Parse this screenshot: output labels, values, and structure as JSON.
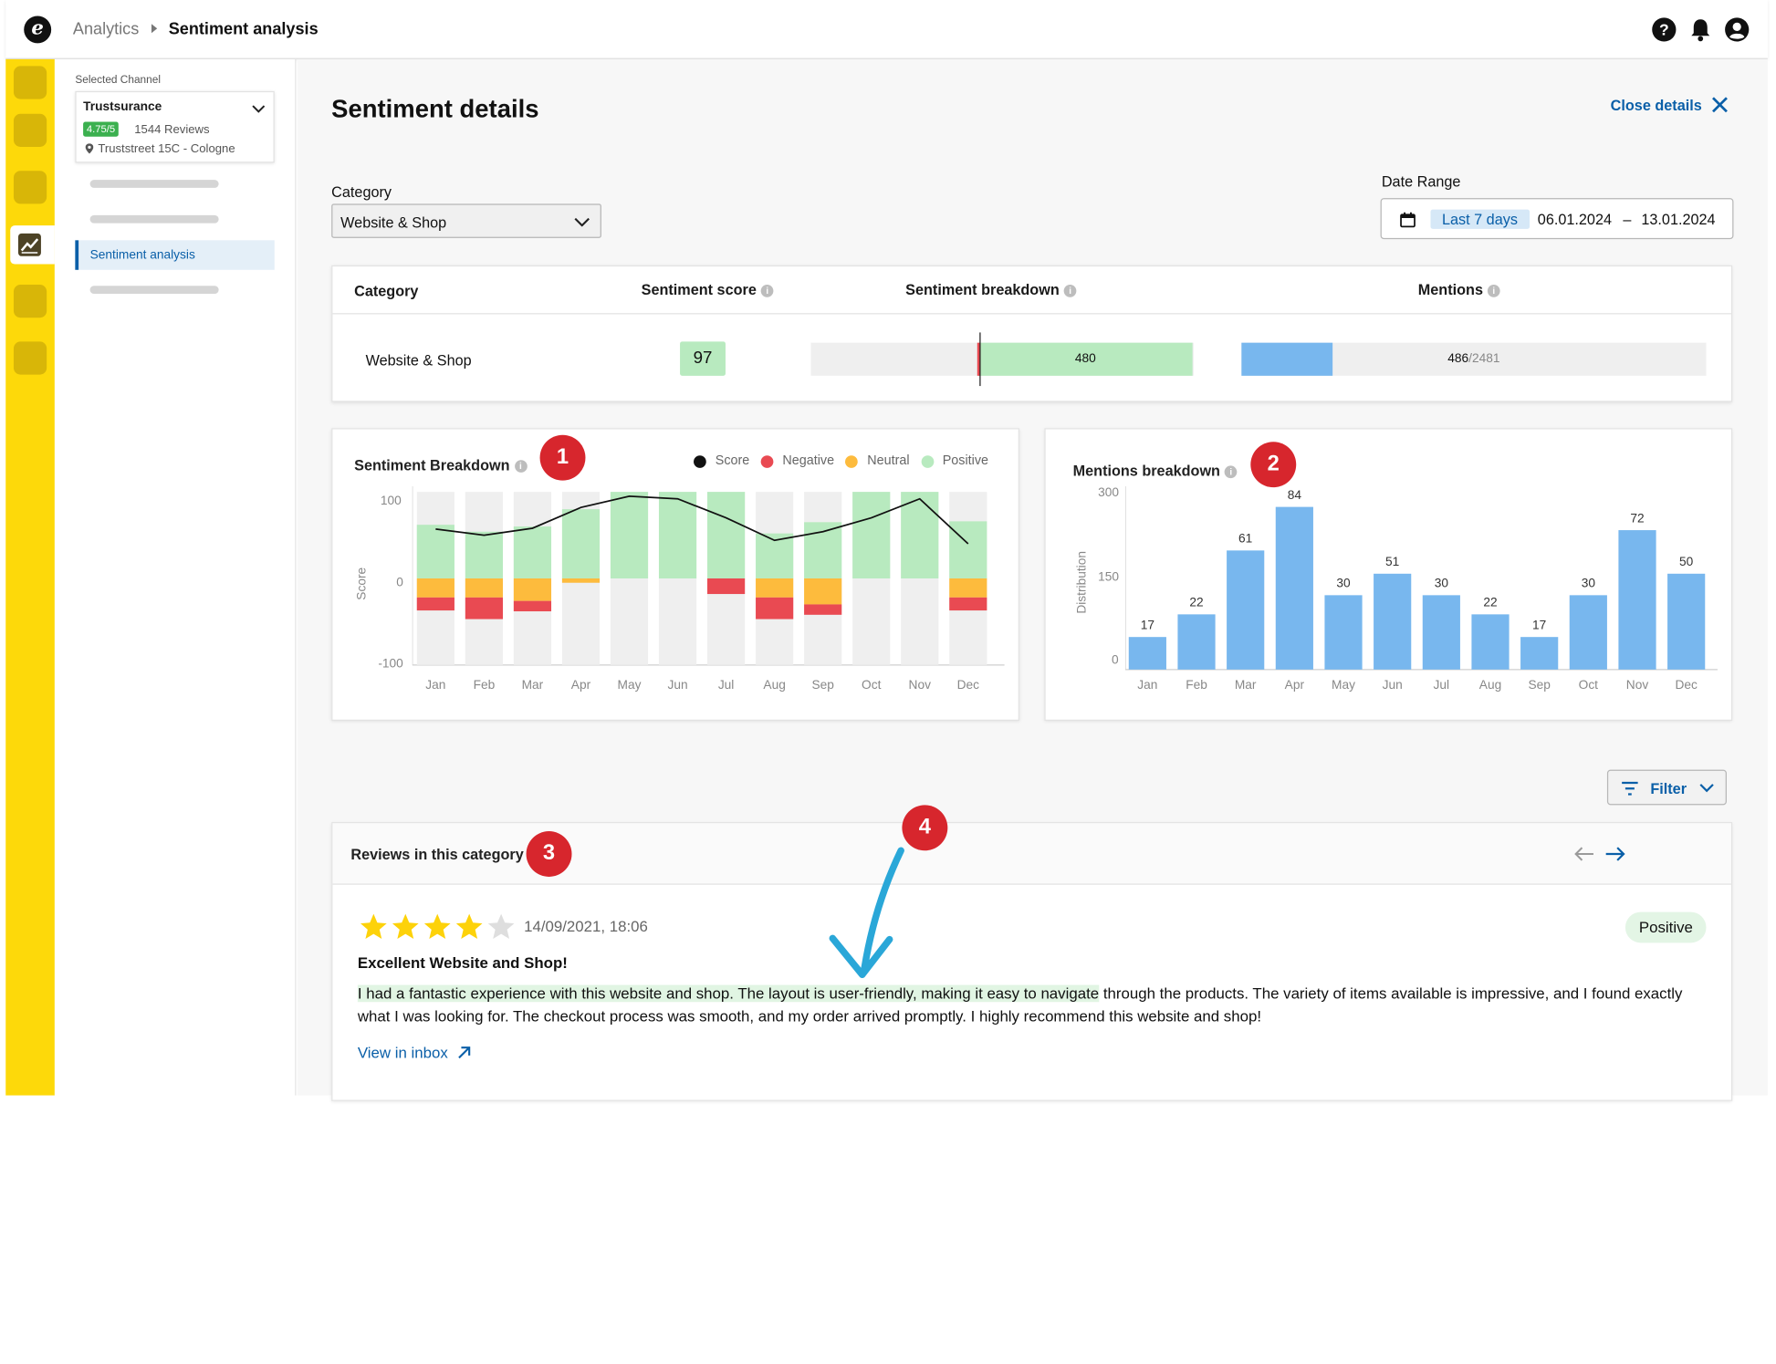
{
  "header": {
    "logo_letter": "e",
    "breadcrumb": [
      "Analytics",
      "Sentiment analysis"
    ],
    "icons": [
      "help-icon",
      "bell-icon",
      "user-avatar-icon"
    ]
  },
  "sidebar": {
    "selected_channel_label": "Selected Channel",
    "channel": {
      "name": "Trustsurance",
      "rating": "4.75/5",
      "reviews": "1544 Reviews",
      "address": "Truststreet 15C - Cologne"
    },
    "active_item": "Sentiment analysis"
  },
  "page": {
    "title": "Sentiment details",
    "close_label": "Close details",
    "category_label": "Category",
    "category_value": "Website & Shop",
    "date_range_label": "Date Range",
    "date_preset": "Last 7 days",
    "date_from": "06.01.2024",
    "date_sep": "–",
    "date_to": "13.01.2024"
  },
  "summary_table": {
    "headers": [
      "Category",
      "Sentiment score",
      "Sentiment breakdown",
      "Mentions"
    ],
    "row": {
      "category": "Website & Shop",
      "score": "97",
      "positive_count": "480",
      "mentions": "486",
      "mentions_total": "/2481",
      "mentions_fraction": 0.196
    }
  },
  "sentiment_chart": {
    "title": "Sentiment Breakdown",
    "badge": "1",
    "legend": [
      "Score",
      "Negative",
      "Neutral",
      "Positive"
    ],
    "y_label": "Score",
    "y_ticks": [
      "100",
      "0",
      "-100"
    ]
  },
  "mentions_chart": {
    "title": "Mentions breakdown",
    "badge": "2",
    "y_label": "Distribution",
    "y_ticks": [
      "300",
      "150",
      "0"
    ]
  },
  "chart_data": [
    {
      "type": "bar",
      "title": "Sentiment Breakdown",
      "ylabel": "Score",
      "ylim": [
        -100,
        100
      ],
      "categories": [
        "Jan",
        "Feb",
        "Mar",
        "Apr",
        "May",
        "Jun",
        "Jul",
        "Aug",
        "Sep",
        "Oct",
        "Nov",
        "Dec"
      ],
      "series": [
        {
          "name": "Positive",
          "values": [
            62,
            54,
            60,
            80,
            100,
            100,
            100,
            52,
            65,
            100,
            100,
            66
          ]
        },
        {
          "name": "Neutral",
          "values": [
            -22,
            -22,
            -26,
            -5,
            0,
            0,
            0,
            -22,
            -30,
            0,
            0,
            -22
          ]
        },
        {
          "name": "Negative",
          "values": [
            -15,
            -25,
            -12,
            0,
            0,
            0,
            -18,
            -25,
            -12,
            0,
            0,
            -15
          ]
        },
        {
          "name": "Score",
          "values": [
            57,
            50,
            58,
            82,
            95,
            92,
            70,
            44,
            54,
            70,
            92,
            40
          ]
        }
      ],
      "colors": {
        "Positive": "#b8eabf",
        "Neutral": "#fdbb3d",
        "Negative": "#e94a52",
        "Score": "#111111",
        "track": "#efefef"
      },
      "legend": "top-right",
      "grid": false
    },
    {
      "type": "bar",
      "title": "Mentions breakdown",
      "ylabel": "Distribution",
      "ylim": [
        0,
        300
      ],
      "categories": [
        "Jan",
        "Feb",
        "Mar",
        "Apr",
        "May",
        "Jun",
        "Jul",
        "Aug",
        "Sep",
        "Oct",
        "Nov",
        "Dec"
      ],
      "values": [
        17,
        22,
        61,
        84,
        30,
        51,
        30,
        22,
        17,
        30,
        72,
        50
      ],
      "plot_values": [
        56,
        95,
        205,
        280,
        128,
        165,
        128,
        95,
        56,
        128,
        240,
        165
      ],
      "color": "#78b7ee",
      "grid": false
    }
  ],
  "reviews": {
    "filter_label": "Filter",
    "section_title": "Reviews in this category",
    "section_badge": "3",
    "annotation_badge": "4",
    "items": [
      {
        "rating": 4,
        "max_rating": 5,
        "date": "14/09/2021, 18:06",
        "title": "Excellent Website and Shop!",
        "text_highlight": "I had a fantastic experience with this website and shop. The layout is user-friendly, making it easy to navigate",
        "text_rest": " through the products. The variety of items available is impressive, and I found exactly what I was looking for. The checkout process was smooth, and my order arrived promptly. I highly recommend this website and shop!",
        "sentiment": "Positive",
        "link": "View in inbox"
      }
    ]
  },
  "colors": {
    "accent": "#0a5fa8",
    "rail": "#fdd90a",
    "badge_red": "#d7262d",
    "positive": "#b8eabf",
    "mentions_blue": "#78b7ee"
  }
}
